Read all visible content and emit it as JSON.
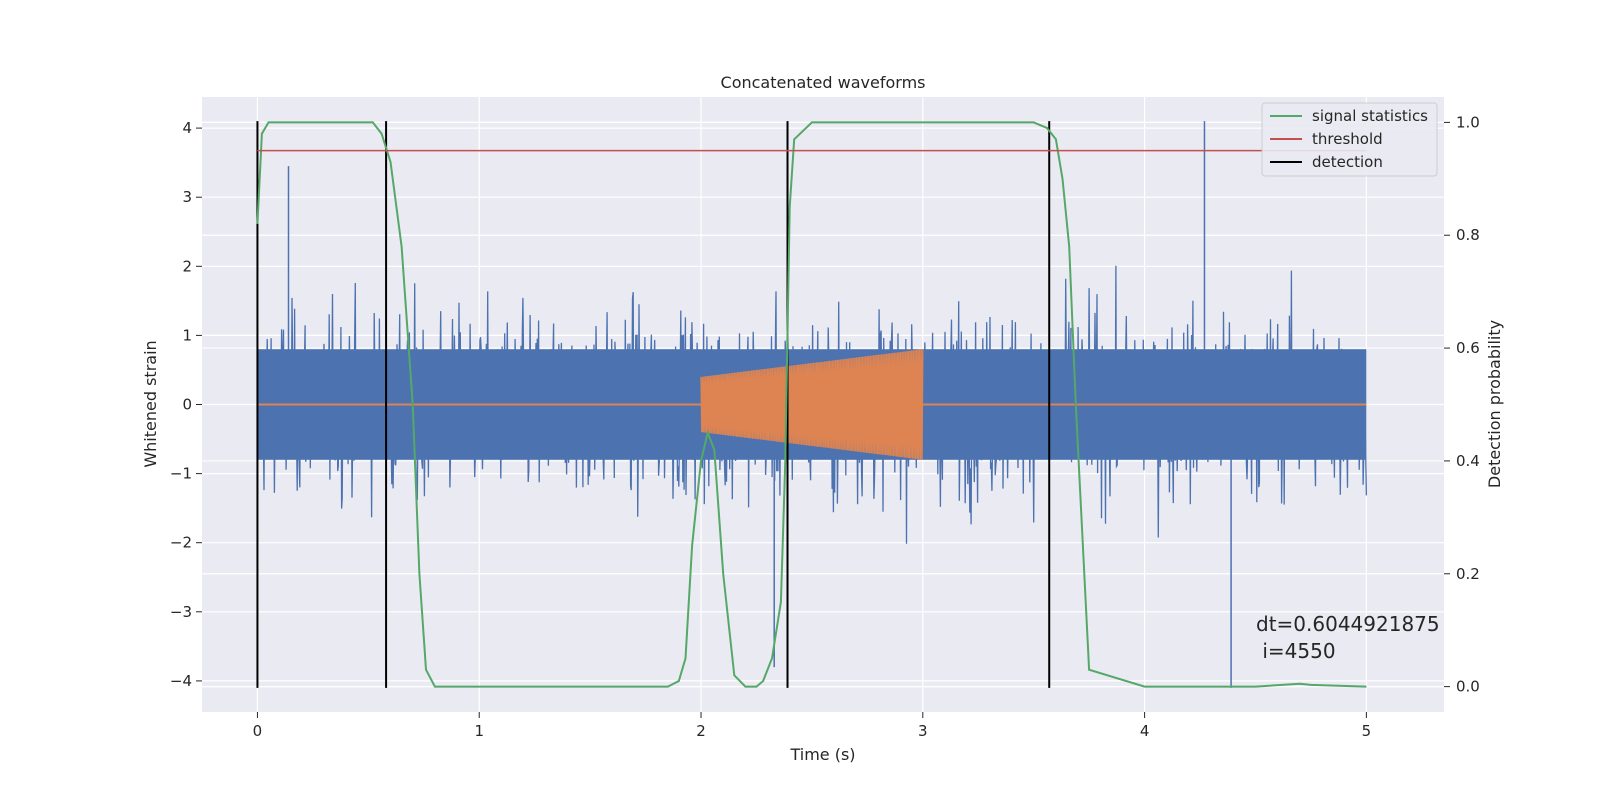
{
  "chart_data": {
    "type": "line",
    "title": "Concatenated waveforms",
    "xlabel": "Time (s)",
    "ylabel_left": "Whitened strain",
    "ylabel_right": "Detection probability",
    "xlim": [
      -0.25,
      5.35
    ],
    "ylim_left": [
      -4.45,
      4.45
    ],
    "ylim_right": [
      -0.045,
      1.045
    ],
    "x_ticks": [
      0,
      1,
      2,
      3,
      4,
      5
    ],
    "y_left_ticks": [
      -4,
      -3,
      -2,
      -1,
      0,
      1,
      2,
      3,
      4
    ],
    "y_right_ticks": [
      0.0,
      0.2,
      0.4,
      0.6,
      0.8,
      1.0
    ],
    "grid": true,
    "legend_position": "upper-right",
    "legend": [
      "signal statistics",
      "threshold",
      "detection"
    ],
    "series": [
      {
        "name": "signal statistics",
        "axis": "right",
        "color": "#55a868",
        "x": [
          0,
          0.02,
          0.05,
          0.1,
          0.3,
          0.52,
          0.56,
          0.6,
          0.65,
          0.7,
          0.73,
          0.76,
          0.8,
          1.0,
          1.5,
          1.85,
          1.9,
          1.93,
          1.96,
          2.0,
          2.03,
          2.06,
          2.1,
          2.15,
          2.2,
          2.25,
          2.28,
          2.32,
          2.36,
          2.38,
          2.4,
          2.42,
          2.5,
          3.0,
          3.5,
          3.56,
          3.6,
          3.63,
          3.66,
          3.69,
          3.75,
          4.0,
          4.5,
          4.7,
          4.75,
          5.0
        ],
        "y": [
          0.82,
          0.98,
          1.0,
          1.0,
          1.0,
          1.0,
          0.98,
          0.93,
          0.78,
          0.5,
          0.2,
          0.03,
          0.0,
          0.0,
          0.0,
          0.0,
          0.01,
          0.05,
          0.25,
          0.4,
          0.45,
          0.42,
          0.2,
          0.02,
          0.0,
          0.0,
          0.01,
          0.05,
          0.15,
          0.4,
          0.85,
          0.97,
          1.0,
          1.0,
          1.0,
          0.99,
          0.97,
          0.9,
          0.78,
          0.5,
          0.03,
          0.0,
          0.0,
          0.005,
          0.003,
          0.0
        ]
      },
      {
        "name": "threshold",
        "axis": "right",
        "color": "#c44e52",
        "x": [
          0,
          5.0
        ],
        "y": [
          0.95,
          0.95
        ]
      },
      {
        "name": "detection",
        "axis": "left",
        "color": "#000000",
        "type": "vlines",
        "x": [
          0.0,
          0.58,
          2.39,
          3.57
        ],
        "ymin": -4.1,
        "ymax": 4.1
      },
      {
        "name": "whitened strain",
        "axis": "left",
        "color": "#4c72b0",
        "description_range": {
          "x": [
            0,
            5.0
          ],
          "envelope_typical": 2.3,
          "peak_max": 4.1,
          "peak_min": -4.1
        }
      },
      {
        "name": "injected waveform",
        "axis": "left",
        "color": "#dd8452",
        "segments": [
          {
            "x": [
              0,
              2.0
            ],
            "y": [
              0,
              0
            ]
          },
          {
            "x_range": [
              2.0,
              3.0
            ],
            "amplitude_start": 0.4,
            "amplitude_end": 0.8
          },
          {
            "x": [
              3.0,
              5.0
            ],
            "y": [
              0,
              0
            ]
          }
        ]
      }
    ],
    "annotation": {
      "dt_text": "dt=0.6044921875",
      "i_text": " i=4550"
    }
  }
}
